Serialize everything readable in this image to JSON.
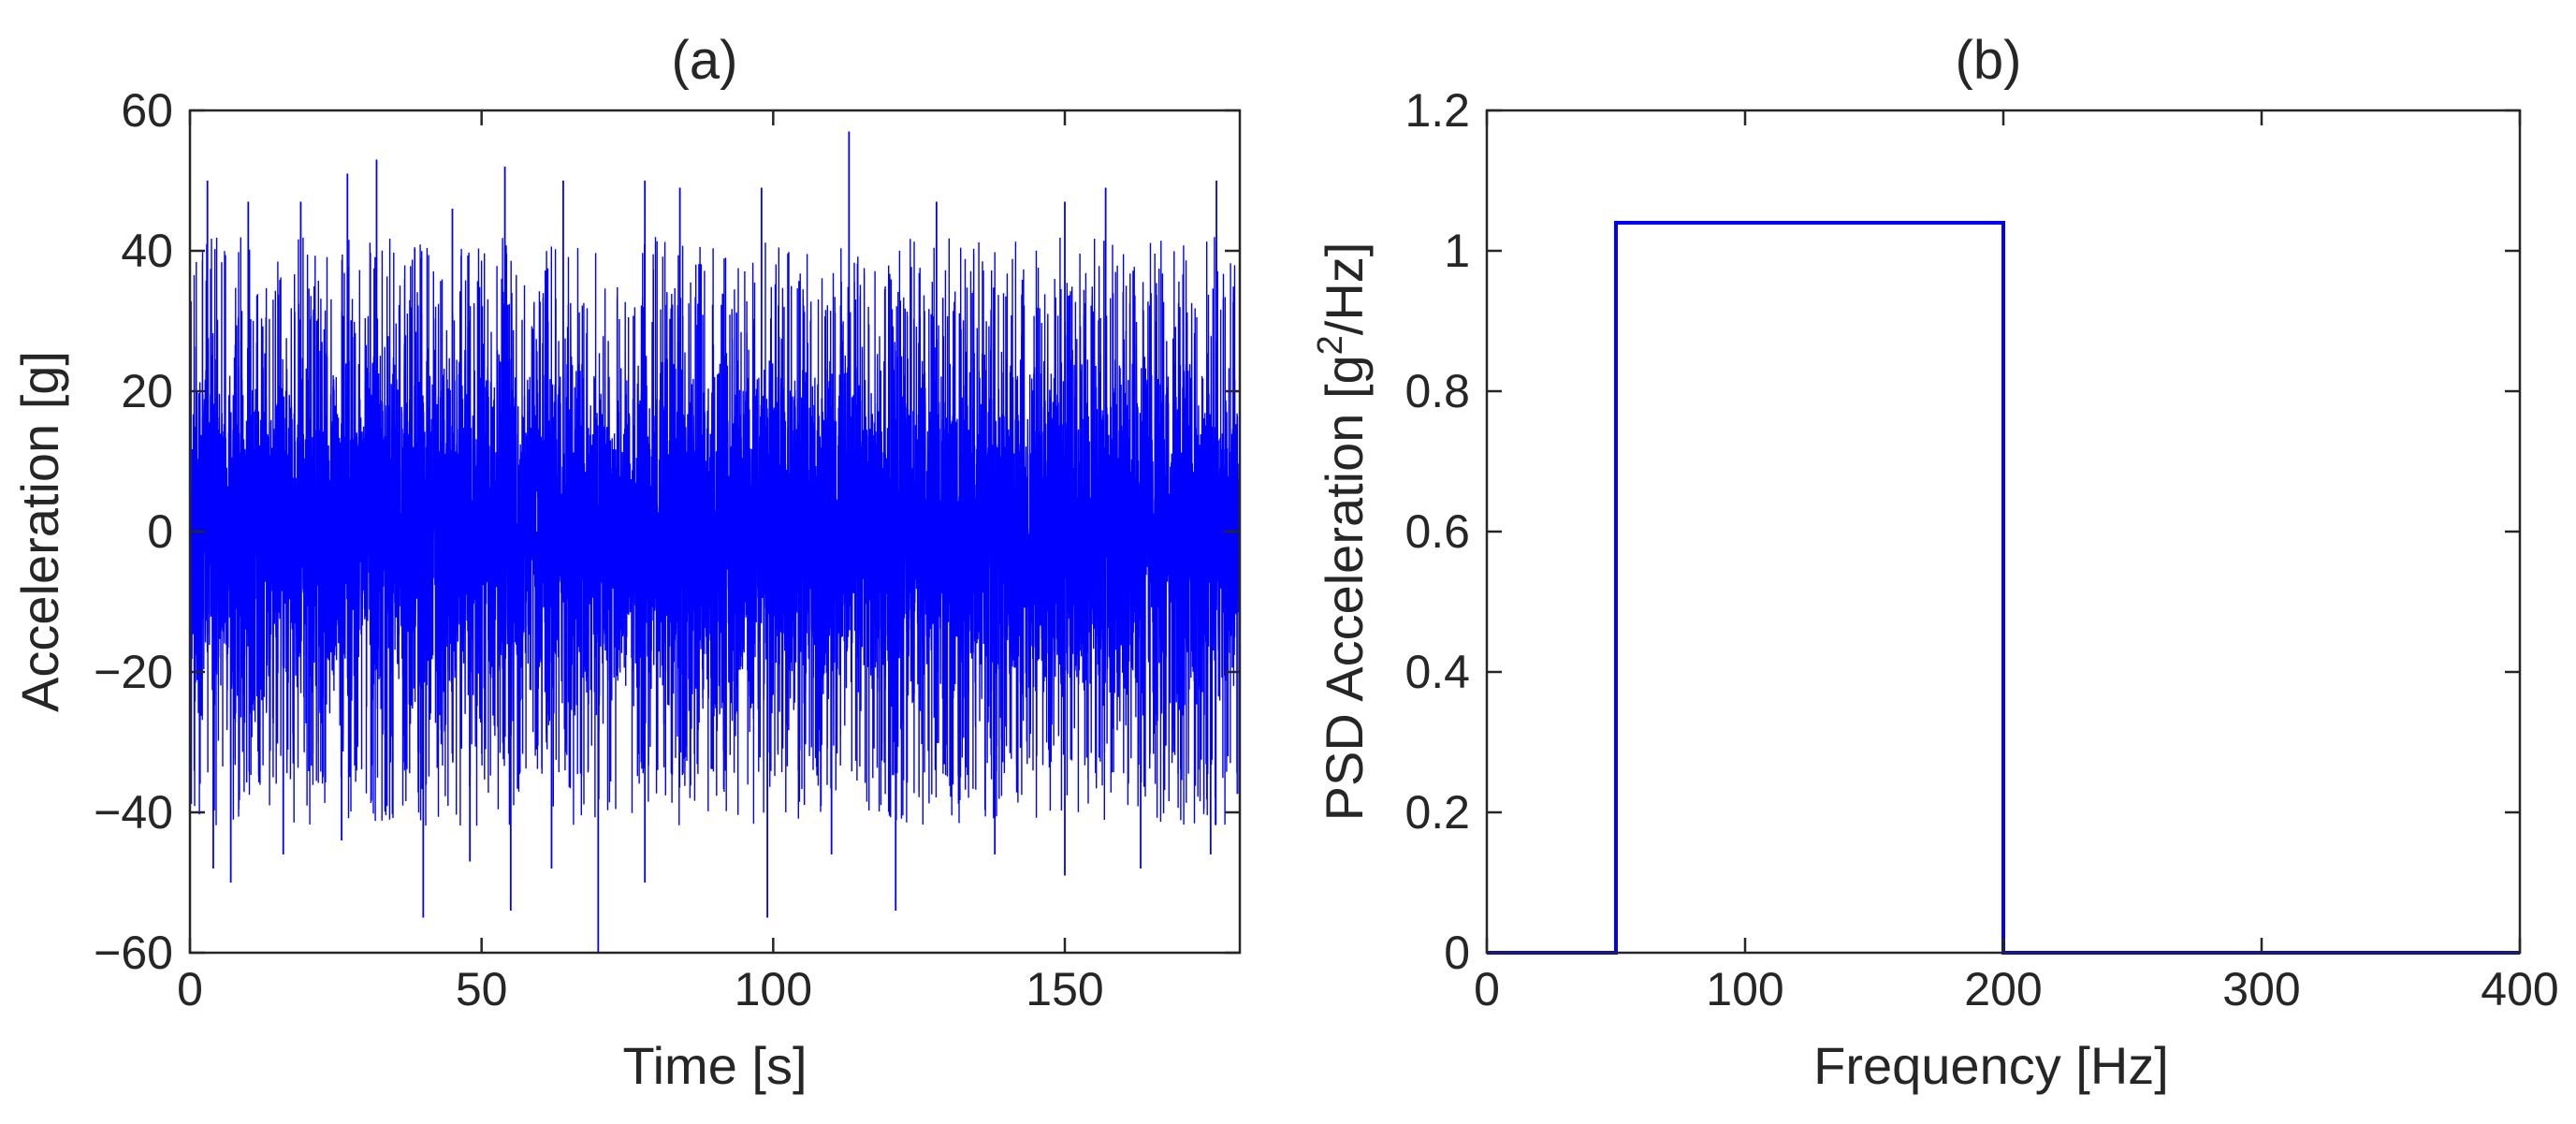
{
  "colors": {
    "series": "#0000ff",
    "axes": "#262626",
    "background": "#ffffff"
  },
  "chart_data": [
    {
      "type": "line",
      "title": "(a)",
      "xlabel": "Time [s]",
      "ylabel": "Acceleration [g]",
      "xlim": [
        0,
        180
      ],
      "ylim": [
        -60,
        60
      ],
      "xticks": [
        0,
        50,
        100,
        150
      ],
      "yticks": [
        -60,
        -40,
        -20,
        0,
        20,
        40,
        60
      ],
      "xtick_labels": [
        "0",
        "50",
        "100",
        "150"
      ],
      "ytick_labels": [
        "−60",
        "−40",
        "−20",
        "0",
        "20",
        "40",
        "60"
      ],
      "grid": false,
      "series": [
        {
          "description_of_signal": "dense random vibration, mostly within about ±35 g, occasional peaks",
          "x_range": [
            0,
            180
          ],
          "typical_band": [
            -35,
            35
          ],
          "peaks": [
            {
              "x": 3,
              "y": 50
            },
            {
              "x": 10,
              "y": 47
            },
            {
              "x": 19,
              "y": 47
            },
            {
              "x": 27,
              "y": 51
            },
            {
              "x": 32,
              "y": 53
            },
            {
              "x": 45,
              "y": 46
            },
            {
              "x": 54,
              "y": 52
            },
            {
              "x": 64,
              "y": 50
            },
            {
              "x": 78,
              "y": 50
            },
            {
              "x": 84,
              "y": 49
            },
            {
              "x": 98,
              "y": 49
            },
            {
              "x": 113,
              "y": 57
            },
            {
              "x": 128,
              "y": 47
            },
            {
              "x": 150,
              "y": 47
            },
            {
              "x": 157,
              "y": 49
            },
            {
              "x": 176,
              "y": 50
            },
            {
              "x": 4,
              "y": -48
            },
            {
              "x": 7,
              "y": -50
            },
            {
              "x": 16,
              "y": -46
            },
            {
              "x": 26,
              "y": -44
            },
            {
              "x": 40,
              "y": -55
            },
            {
              "x": 48,
              "y": -47
            },
            {
              "x": 55,
              "y": -54
            },
            {
              "x": 62,
              "y": -48
            },
            {
              "x": 70,
              "y": -60
            },
            {
              "x": 78,
              "y": -50
            },
            {
              "x": 99,
              "y": -55
            },
            {
              "x": 110,
              "y": -46
            },
            {
              "x": 121,
              "y": -54
            },
            {
              "x": 138,
              "y": -46
            },
            {
              "x": 150,
              "y": -49
            },
            {
              "x": 163,
              "y": -48
            },
            {
              "x": 175,
              "y": -46
            }
          ]
        }
      ]
    },
    {
      "type": "line",
      "title": "(b)",
      "xlabel": "Frequency [Hz]",
      "ylabel_prefix": "PSD Acceleration [g",
      "ylabel_sup": "2",
      "ylabel_suffix": "/Hz]",
      "xlim": [
        0,
        400
      ],
      "ylim": [
        0,
        1.2
      ],
      "xticks": [
        0,
        100,
        200,
        300,
        400
      ],
      "yticks": [
        0,
        0.2,
        0.4,
        0.6,
        0.8,
        1,
        1.2
      ],
      "xtick_labels": [
        "0",
        "100",
        "200",
        "300",
        "400"
      ],
      "ytick_labels": [
        "0",
        "0.2",
        "0.4",
        "0.6",
        "0.8",
        "1",
        "1.2"
      ],
      "grid": false,
      "series": [
        {
          "x": [
            0,
            50,
            50,
            200,
            200,
            400
          ],
          "y": [
            0,
            0,
            1.04,
            1.04,
            0,
            0
          ]
        }
      ]
    }
  ]
}
